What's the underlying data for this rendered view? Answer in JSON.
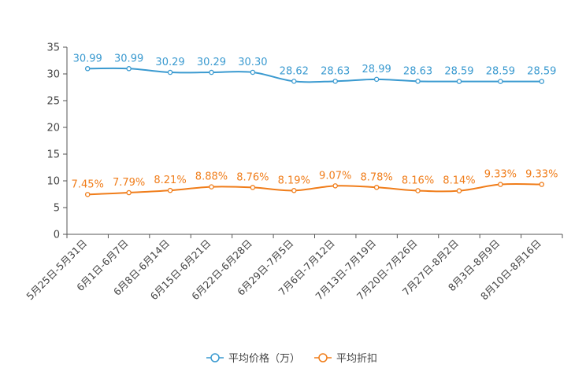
{
  "chart_data": {
    "type": "line",
    "title": "",
    "xlabel": "",
    "ylabel": "",
    "ylim": [
      0,
      35
    ],
    "yticks": [
      0,
      5,
      10,
      15,
      20,
      25,
      30,
      35
    ],
    "grid": false,
    "legend_position": "bottom",
    "categories": [
      "5月25日-5月31日",
      "6月1日-6月7日",
      "6月8日-6月14日",
      "6月15日-6月21日",
      "6月22日-6月28日",
      "6月29日-7月5日",
      "7月6日-7月12日",
      "7月13日-7月19日",
      "7月20日-7月26日",
      "7月27日-8月2日",
      "8月3日-8月9日",
      "8月10日-8月16日"
    ],
    "series": [
      {
        "name": "平均价格（万）",
        "color": "#3a9ad0",
        "values": [
          30.99,
          30.99,
          30.29,
          30.29,
          30.3,
          28.62,
          28.63,
          28.99,
          28.63,
          28.59,
          28.59,
          28.59
        ],
        "labels": [
          "30.99",
          "30.99",
          "30.29",
          "30.29",
          "30.30",
          "28.62",
          "28.63",
          "28.99",
          "28.63",
          "28.59",
          "28.59",
          "28.59"
        ]
      },
      {
        "name": "平均折扣",
        "color": "#f07d1a",
        "values": [
          7.45,
          7.79,
          8.21,
          8.88,
          8.76,
          8.19,
          9.07,
          8.78,
          8.16,
          8.14,
          9.33,
          9.33
        ],
        "labels": [
          "7.45%",
          "7.79%",
          "8.21%",
          "8.88%",
          "8.76%",
          "8.19%",
          "9.07%",
          "8.78%",
          "8.16%",
          "8.14%",
          "9.33%",
          "9.33%"
        ]
      }
    ]
  }
}
